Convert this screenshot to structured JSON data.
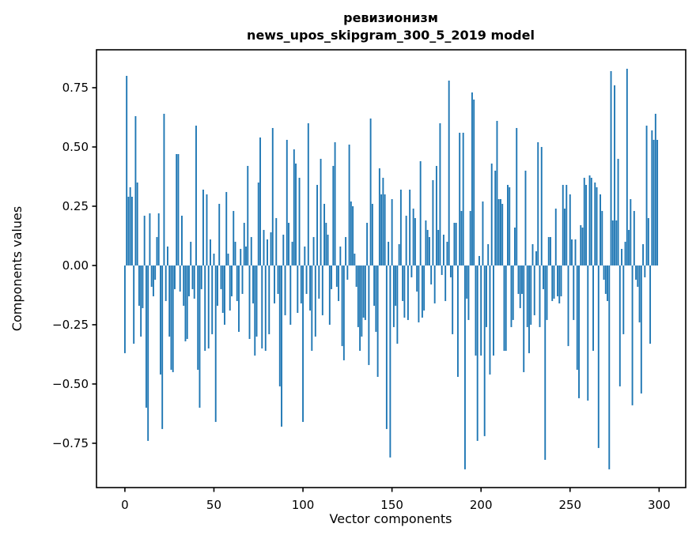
{
  "chart_data": {
    "type": "bar",
    "title": "ревизионизм",
    "subtitle": "news_upos_skipgram_300_5_2019 model",
    "xlabel": "Vector components",
    "ylabel": "Components values",
    "legend": null,
    "grid": false,
    "bar_color": "#1f77b4",
    "axis_color": "#000000",
    "n_components": 300,
    "x_ticks": [
      0,
      50,
      100,
      150,
      200,
      250,
      300
    ],
    "y_ticks": [
      {
        "v": 0.75,
        "label": "0.75"
      },
      {
        "v": 0.5,
        "label": "0.50"
      },
      {
        "v": 0.25,
        "label": "0.25"
      },
      {
        "v": 0.0,
        "label": "0.00"
      },
      {
        "v": -0.25,
        "label": "−0.25"
      },
      {
        "v": -0.5,
        "label": "−0.50"
      },
      {
        "v": -0.75,
        "label": "−0.75"
      }
    ],
    "xlim": [
      -15.95,
      314.95
    ],
    "ylim": [
      -0.937,
      0.91
    ],
    "values": [
      -0.37,
      0.8,
      0.29,
      0.33,
      0.29,
      -0.33,
      0.63,
      0.35,
      -0.17,
      -0.3,
      -0.18,
      0.21,
      -0.6,
      -0.74,
      0.22,
      -0.09,
      -0.13,
      -0.06,
      0.12,
      0.22,
      -0.46,
      -0.69,
      0.64,
      -0.15,
      0.08,
      -0.3,
      -0.44,
      -0.45,
      -0.1,
      0.47,
      0.47,
      -0.11,
      0.21,
      -0.17,
      -0.32,
      -0.31,
      -0.13,
      0.1,
      -0.1,
      -0.14,
      0.59,
      -0.44,
      -0.6,
      -0.1,
      0.32,
      -0.36,
      0.3,
      -0.35,
      0.11,
      -0.29,
      0.05,
      -0.66,
      -0.17,
      0.26,
      -0.1,
      -0.2,
      -0.25,
      0.31,
      0.05,
      -0.19,
      -0.13,
      0.23,
      0.1,
      -0.15,
      -0.28,
      0.07,
      -0.12,
      0.18,
      0.08,
      0.42,
      -0.31,
      0.12,
      -0.16,
      -0.38,
      -0.3,
      0.35,
      0.54,
      -0.35,
      0.15,
      -0.36,
      0.11,
      -0.29,
      0.14,
      0.58,
      -0.16,
      0.2,
      -0.12,
      -0.51,
      -0.68,
      0.13,
      -0.21,
      0.53,
      0.18,
      -0.25,
      0.1,
      0.49,
      0.43,
      -0.2,
      0.37,
      -0.16,
      -0.66,
      0.08,
      -0.12,
      0.6,
      -0.19,
      -0.36,
      0.12,
      -0.3,
      0.34,
      -0.14,
      0.45,
      -0.21,
      0.26,
      0.18,
      0.13,
      -0.25,
      -0.1,
      0.42,
      0.52,
      -0.09,
      -0.15,
      0.08,
      -0.34,
      -0.4,
      0.12,
      -0.06,
      0.51,
      0.27,
      0.25,
      0.05,
      -0.09,
      -0.26,
      -0.36,
      -0.3,
      -0.22,
      -0.23,
      0.18,
      -0.42,
      0.62,
      0.26,
      -0.17,
      -0.28,
      -0.47,
      0.41,
      0.3,
      0.37,
      0.3,
      -0.69,
      0.1,
      -0.81,
      0.28,
      -0.26,
      -0.17,
      -0.33,
      0.09,
      0.32,
      -0.15,
      -0.22,
      0.21,
      -0.23,
      0.32,
      -0.05,
      0.24,
      0.2,
      -0.11,
      -0.24,
      0.44,
      -0.22,
      -0.19,
      0.19,
      0.15,
      0.12,
      -0.08,
      0.36,
      -0.16,
      0.42,
      0.15,
      0.6,
      -0.04,
      0.13,
      -0.15,
      0.1,
      0.78,
      -0.05,
      -0.29,
      0.18,
      0.18,
      -0.47,
      0.56,
      0.23,
      0.56,
      -0.86,
      -0.14,
      -0.23,
      0.23,
      0.73,
      0.7,
      -0.38,
      -0.74,
      0.04,
      -0.38,
      0.27,
      -0.72,
      -0.26,
      0.09,
      -0.46,
      0.43,
      -0.38,
      0.4,
      0.61,
      0.28,
      0.28,
      0.26,
      -0.36,
      -0.36,
      0.34,
      0.33,
      -0.26,
      -0.23,
      0.16,
      0.58,
      -0.12,
      -0.18,
      -0.12,
      -0.45,
      0.4,
      -0.26,
      -0.37,
      -0.25,
      0.09,
      -0.21,
      0.06,
      0.52,
      -0.26,
      0.5,
      -0.1,
      -0.82,
      -0.23,
      0.12,
      0.12,
      -0.15,
      -0.14,
      0.24,
      -0.13,
      -0.16,
      -0.13,
      0.34,
      0.24,
      0.34,
      -0.34,
      0.3,
      0.11,
      -0.23,
      0.11,
      -0.44,
      -0.56,
      0.17,
      0.16,
      0.37,
      0.34,
      -0.57,
      0.38,
      0.37,
      -0.36,
      0.35,
      0.33,
      -0.77,
      0.3,
      0.23,
      -0.06,
      -0.12,
      -0.15,
      -0.86,
      0.82,
      0.19,
      0.76,
      0.19,
      0.45,
      -0.51,
      0.07,
      -0.29,
      0.1,
      0.83,
      0.15,
      0.28,
      -0.59,
      0.23,
      -0.06,
      -0.09,
      -0.24,
      -0.54,
      0.09,
      -0.05,
      0.59,
      0.2,
      -0.33,
      0.57,
      0.53,
      0.64,
      0.53
    ]
  }
}
